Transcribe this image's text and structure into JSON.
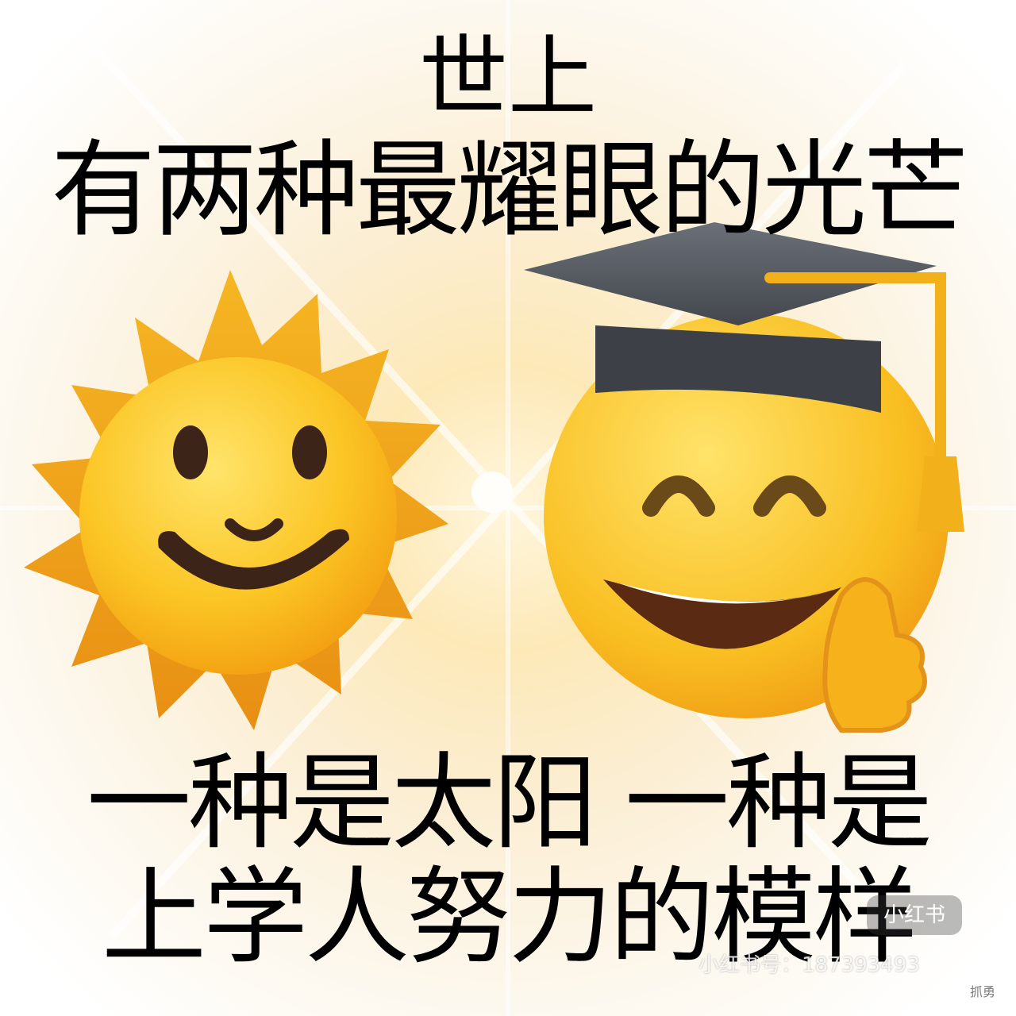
{
  "captions": {
    "line1": "世上",
    "line2": "有两种最耀眼的光芒",
    "line3": "一种是太阳 一种是",
    "line4": "上学人努力的模样"
  },
  "watermark": {
    "logo": "小红书",
    "text": "小红书号：187393493",
    "sub": "抓勇"
  },
  "emojis": [
    "sun-with-face-icon",
    "graduation-cap-grinning-face-thumbs-up-icon"
  ],
  "colors": {
    "sun": "#f6b21c",
    "face": "#f9c21f",
    "cap": "#555a61",
    "tassel": "#f2b01a",
    "mouth": "#4a2a18",
    "glow": "#fde9b8"
  }
}
